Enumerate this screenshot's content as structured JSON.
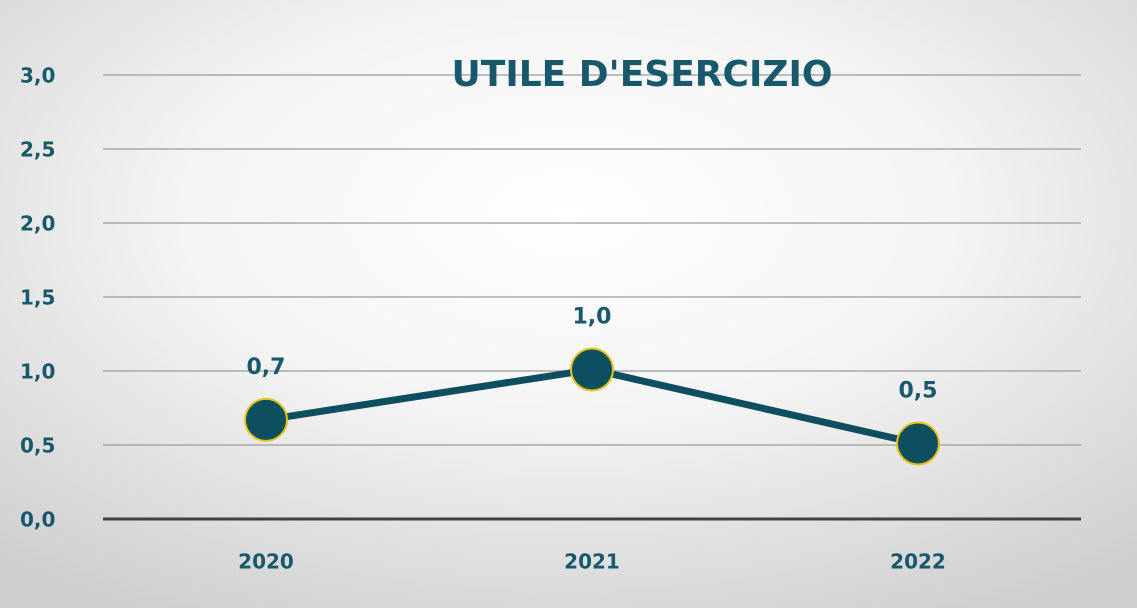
{
  "chart_data": {
    "type": "line",
    "title": "UTILE D'ESERCIZIO",
    "categories": [
      "2020",
      "2021",
      "2022"
    ],
    "values": [
      0.67,
      1.01,
      0.51
    ],
    "value_labels": [
      "0,7",
      "1,0",
      "0,5"
    ],
    "color": "#0d4f5e",
    "marker_edge_color": "#e8c21a",
    "ylim": [
      0,
      3
    ],
    "yticks": [
      {
        "value": 0,
        "label": "0,0"
      },
      {
        "value": 0.5,
        "label": "0,5"
      },
      {
        "value": 1,
        "label": "1,0"
      },
      {
        "value": 1.5,
        "label": "1,5"
      },
      {
        "value": 2,
        "label": "2,0"
      },
      {
        "value": 2.5,
        "label": "2,5"
      },
      {
        "value": 3,
        "label": "3,0"
      }
    ],
    "grid": true
  }
}
